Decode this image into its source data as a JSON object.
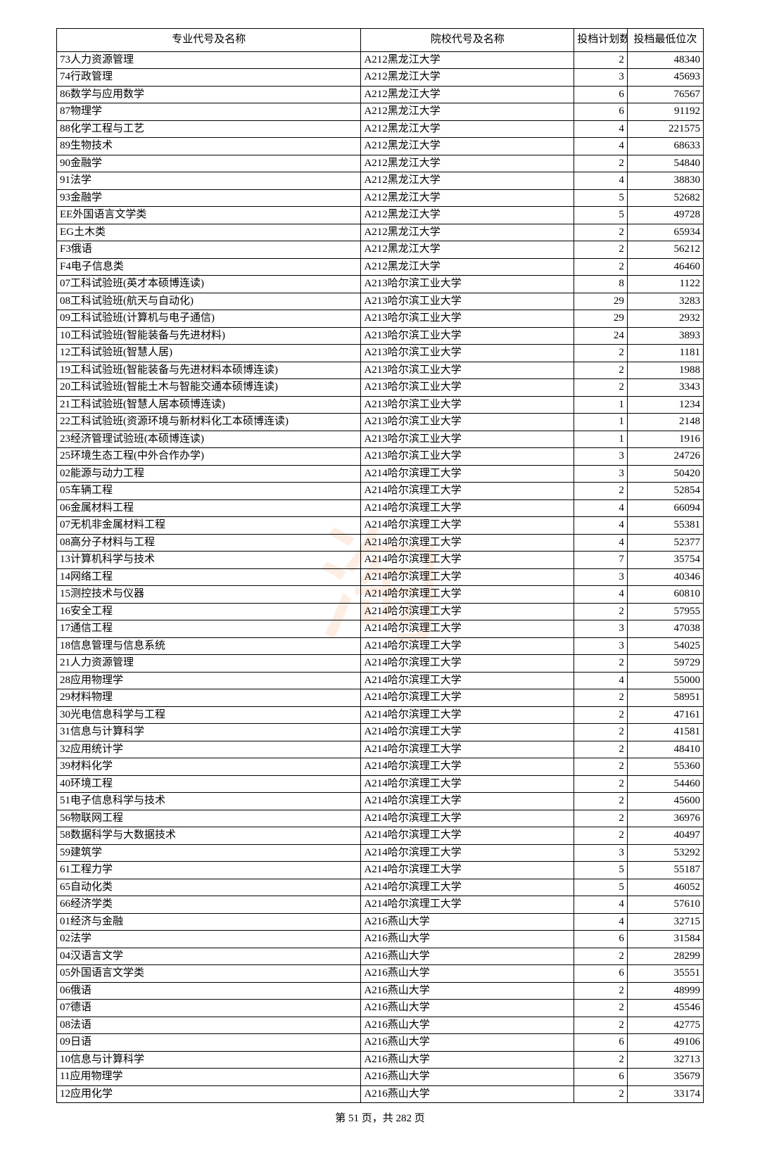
{
  "watermark": "淘",
  "headers": {
    "major": "专业代号及名称",
    "school": "院校代号及名称",
    "count": "投档计划数",
    "rank": "投档最低位次"
  },
  "footer": {
    "page_current": "51",
    "page_total": "282",
    "prefix": "第 ",
    "mid": " 页，共 ",
    "suffix": " 页"
  },
  "rows": [
    {
      "major": "73人力资源管理",
      "school": "A212黑龙江大学",
      "count": "2",
      "rank": "48340"
    },
    {
      "major": "74行政管理",
      "school": "A212黑龙江大学",
      "count": "3",
      "rank": "45693"
    },
    {
      "major": "86数学与应用数学",
      "school": "A212黑龙江大学",
      "count": "6",
      "rank": "76567"
    },
    {
      "major": "87物理学",
      "school": "A212黑龙江大学",
      "count": "6",
      "rank": "91192"
    },
    {
      "major": "88化学工程与工艺",
      "school": "A212黑龙江大学",
      "count": "4",
      "rank": "221575"
    },
    {
      "major": "89生物技术",
      "school": "A212黑龙江大学",
      "count": "4",
      "rank": "68633"
    },
    {
      "major": "90金融学",
      "school": "A212黑龙江大学",
      "count": "2",
      "rank": "54840"
    },
    {
      "major": "91法学",
      "school": "A212黑龙江大学",
      "count": "4",
      "rank": "38830"
    },
    {
      "major": "93金融学",
      "school": "A212黑龙江大学",
      "count": "5",
      "rank": "52682"
    },
    {
      "major": "EE外国语言文学类",
      "school": "A212黑龙江大学",
      "count": "5",
      "rank": "49728"
    },
    {
      "major": "EG土木类",
      "school": "A212黑龙江大学",
      "count": "2",
      "rank": "65934"
    },
    {
      "major": "F3俄语",
      "school": "A212黑龙江大学",
      "count": "2",
      "rank": "56212"
    },
    {
      "major": "F4电子信息类",
      "school": "A212黑龙江大学",
      "count": "2",
      "rank": "46460"
    },
    {
      "major": "07工科试验班(英才本硕博连读)",
      "school": "A213哈尔滨工业大学",
      "count": "8",
      "rank": "1122"
    },
    {
      "major": "08工科试验班(航天与自动化)",
      "school": "A213哈尔滨工业大学",
      "count": "29",
      "rank": "3283"
    },
    {
      "major": "09工科试验班(计算机与电子通信)",
      "school": "A213哈尔滨工业大学",
      "count": "29",
      "rank": "2932"
    },
    {
      "major": "10工科试验班(智能装备与先进材料)",
      "school": "A213哈尔滨工业大学",
      "count": "24",
      "rank": "3893"
    },
    {
      "major": "12工科试验班(智慧人居)",
      "school": "A213哈尔滨工业大学",
      "count": "2",
      "rank": "1181"
    },
    {
      "major": "19工科试验班(智能装备与先进材料本硕博连读)",
      "school": "A213哈尔滨工业大学",
      "count": "2",
      "rank": "1988"
    },
    {
      "major": "20工科试验班(智能土木与智能交通本硕博连读)",
      "school": "A213哈尔滨工业大学",
      "count": "2",
      "rank": "3343"
    },
    {
      "major": "21工科试验班(智慧人居本硕博连读)",
      "school": "A213哈尔滨工业大学",
      "count": "1",
      "rank": "1234"
    },
    {
      "major": "22工科试验班(资源环境与新材料化工本硕博连读)",
      "school": "A213哈尔滨工业大学",
      "count": "1",
      "rank": "2148"
    },
    {
      "major": "23经济管理试验班(本硕博连读)",
      "school": "A213哈尔滨工业大学",
      "count": "1",
      "rank": "1916"
    },
    {
      "major": "25环境生态工程(中外合作办学)",
      "school": "A213哈尔滨工业大学",
      "count": "3",
      "rank": "24726"
    },
    {
      "major": "02能源与动力工程",
      "school": "A214哈尔滨理工大学",
      "count": "3",
      "rank": "50420"
    },
    {
      "major": "05车辆工程",
      "school": "A214哈尔滨理工大学",
      "count": "2",
      "rank": "52854"
    },
    {
      "major": "06金属材料工程",
      "school": "A214哈尔滨理工大学",
      "count": "4",
      "rank": "66094"
    },
    {
      "major": "07无机非金属材料工程",
      "school": "A214哈尔滨理工大学",
      "count": "4",
      "rank": "55381"
    },
    {
      "major": "08高分子材料与工程",
      "school": "A214哈尔滨理工大学",
      "count": "4",
      "rank": "52377"
    },
    {
      "major": "13计算机科学与技术",
      "school": "A214哈尔滨理工大学",
      "count": "7",
      "rank": "35754"
    },
    {
      "major": "14网络工程",
      "school": "A214哈尔滨理工大学",
      "count": "3",
      "rank": "40346"
    },
    {
      "major": "15测控技术与仪器",
      "school": "A214哈尔滨理工大学",
      "count": "4",
      "rank": "60810"
    },
    {
      "major": "16安全工程",
      "school": "A214哈尔滨理工大学",
      "count": "2",
      "rank": "57955"
    },
    {
      "major": "17通信工程",
      "school": "A214哈尔滨理工大学",
      "count": "3",
      "rank": "47038"
    },
    {
      "major": "18信息管理与信息系统",
      "school": "A214哈尔滨理工大学",
      "count": "3",
      "rank": "54025"
    },
    {
      "major": "21人力资源管理",
      "school": "A214哈尔滨理工大学",
      "count": "2",
      "rank": "59729"
    },
    {
      "major": "28应用物理学",
      "school": "A214哈尔滨理工大学",
      "count": "4",
      "rank": "55000"
    },
    {
      "major": "29材料物理",
      "school": "A214哈尔滨理工大学",
      "count": "2",
      "rank": "58951"
    },
    {
      "major": "30光电信息科学与工程",
      "school": "A214哈尔滨理工大学",
      "count": "2",
      "rank": "47161"
    },
    {
      "major": "31信息与计算科学",
      "school": "A214哈尔滨理工大学",
      "count": "2",
      "rank": "41581"
    },
    {
      "major": "32应用统计学",
      "school": "A214哈尔滨理工大学",
      "count": "2",
      "rank": "48410"
    },
    {
      "major": "39材料化学",
      "school": "A214哈尔滨理工大学",
      "count": "2",
      "rank": "55360"
    },
    {
      "major": "40环境工程",
      "school": "A214哈尔滨理工大学",
      "count": "2",
      "rank": "54460"
    },
    {
      "major": "51电子信息科学与技术",
      "school": "A214哈尔滨理工大学",
      "count": "2",
      "rank": "45600"
    },
    {
      "major": "56物联网工程",
      "school": "A214哈尔滨理工大学",
      "count": "2",
      "rank": "36976"
    },
    {
      "major": "58数据科学与大数据技术",
      "school": "A214哈尔滨理工大学",
      "count": "2",
      "rank": "40497"
    },
    {
      "major": "59建筑学",
      "school": "A214哈尔滨理工大学",
      "count": "3",
      "rank": "53292"
    },
    {
      "major": "61工程力学",
      "school": "A214哈尔滨理工大学",
      "count": "5",
      "rank": "55187"
    },
    {
      "major": "65自动化类",
      "school": "A214哈尔滨理工大学",
      "count": "5",
      "rank": "46052"
    },
    {
      "major": "66经济学类",
      "school": "A214哈尔滨理工大学",
      "count": "4",
      "rank": "57610"
    },
    {
      "major": "01经济与金融",
      "school": "A216燕山大学",
      "count": "4",
      "rank": "32715"
    },
    {
      "major": "02法学",
      "school": "A216燕山大学",
      "count": "6",
      "rank": "31584"
    },
    {
      "major": "04汉语言文学",
      "school": "A216燕山大学",
      "count": "2",
      "rank": "28299"
    },
    {
      "major": "05外国语言文学类",
      "school": "A216燕山大学",
      "count": "6",
      "rank": "35551"
    },
    {
      "major": "06俄语",
      "school": "A216燕山大学",
      "count": "2",
      "rank": "48999"
    },
    {
      "major": "07德语",
      "school": "A216燕山大学",
      "count": "2",
      "rank": "45546"
    },
    {
      "major": "08法语",
      "school": "A216燕山大学",
      "count": "2",
      "rank": "42775"
    },
    {
      "major": "09日语",
      "school": "A216燕山大学",
      "count": "6",
      "rank": "49106"
    },
    {
      "major": "10信息与计算科学",
      "school": "A216燕山大学",
      "count": "2",
      "rank": "32713"
    },
    {
      "major": "11应用物理学",
      "school": "A216燕山大学",
      "count": "6",
      "rank": "35679"
    },
    {
      "major": "12应用化学",
      "school": "A216燕山大学",
      "count": "2",
      "rank": "33174"
    }
  ]
}
